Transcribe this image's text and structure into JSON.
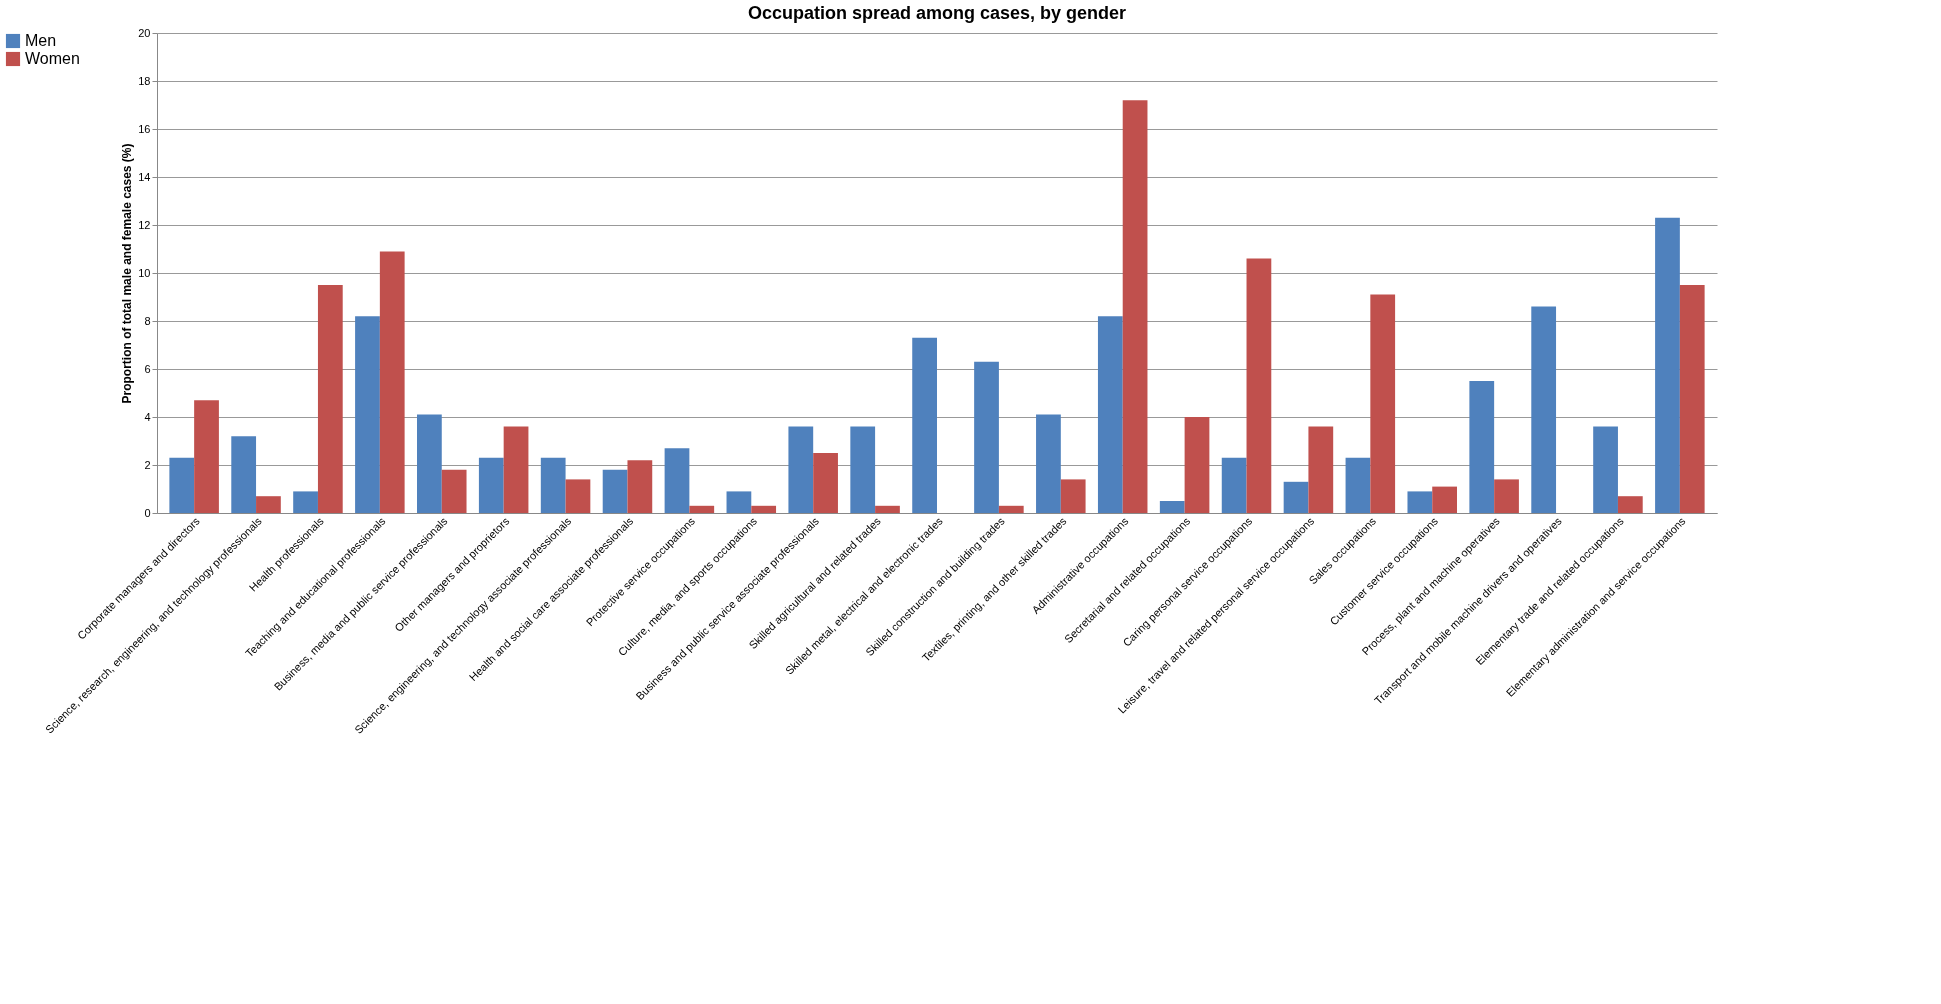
{
  "chart_data": {
    "type": "bar",
    "title": "Occupation spread among cases, by gender",
    "ylabel": "Proportion of total male and female cases (%)",
    "categories": [
      "Corporate managers and directors",
      "Science, research, engineering, and technology professionals",
      "Health professionals",
      "Teaching and educational professionals",
      "Business, media and public service professionals",
      "Other managers and proprietors",
      "Science, engineering, and technology associate professionals",
      "Health and social care associate professionals",
      "Protective service occupations",
      "Culture, media, and sports occupations",
      "Business and public service associate professionals",
      "Skilled agricultural and related trades",
      "Skilled metal, electrical and electronic trades",
      "Skilled construction and building trades",
      "Textiles, printing, and other skilled trades",
      "Administrative occupations",
      "Secretarial and related occupations",
      "Caring personal service occupations",
      "Leisure, travel and related personal service occupations",
      "Sales occupations",
      "Customer service occupations",
      "Process, plant and machine operatives",
      "Transport and mobile machine drivers and operatives",
      "Elementary trade and related occupations",
      "Elementary administration and service occupations"
    ],
    "series": [
      {
        "name": "Men",
        "color": "#4f81bd",
        "values": [
          2.3,
          3.2,
          0.9,
          8.2,
          4.1,
          2.3,
          2.3,
          1.8,
          2.7,
          0.9,
          3.6,
          3.6,
          7.3,
          6.3,
          4.1,
          8.2,
          0.5,
          2.3,
          1.3,
          2.3,
          0.9,
          5.5,
          8.6,
          3.6,
          12.3
        ]
      },
      {
        "name": "Women",
        "color": "#c0504d",
        "values": [
          4.7,
          0.7,
          9.5,
          10.9,
          1.8,
          3.6,
          1.4,
          2.2,
          0.3,
          0.3,
          2.5,
          0.3,
          0,
          0.3,
          1.4,
          17.2,
          4.0,
          10.6,
          3.6,
          9.1,
          1.1,
          1.4,
          0,
          0.7,
          9.5
        ]
      }
    ],
    "ylim": [
      0,
      20
    ],
    "yticks": [
      0,
      2,
      4,
      6,
      8,
      10,
      12,
      14,
      16,
      18,
      20
    ],
    "grid": "y",
    "legend": "top left"
  }
}
